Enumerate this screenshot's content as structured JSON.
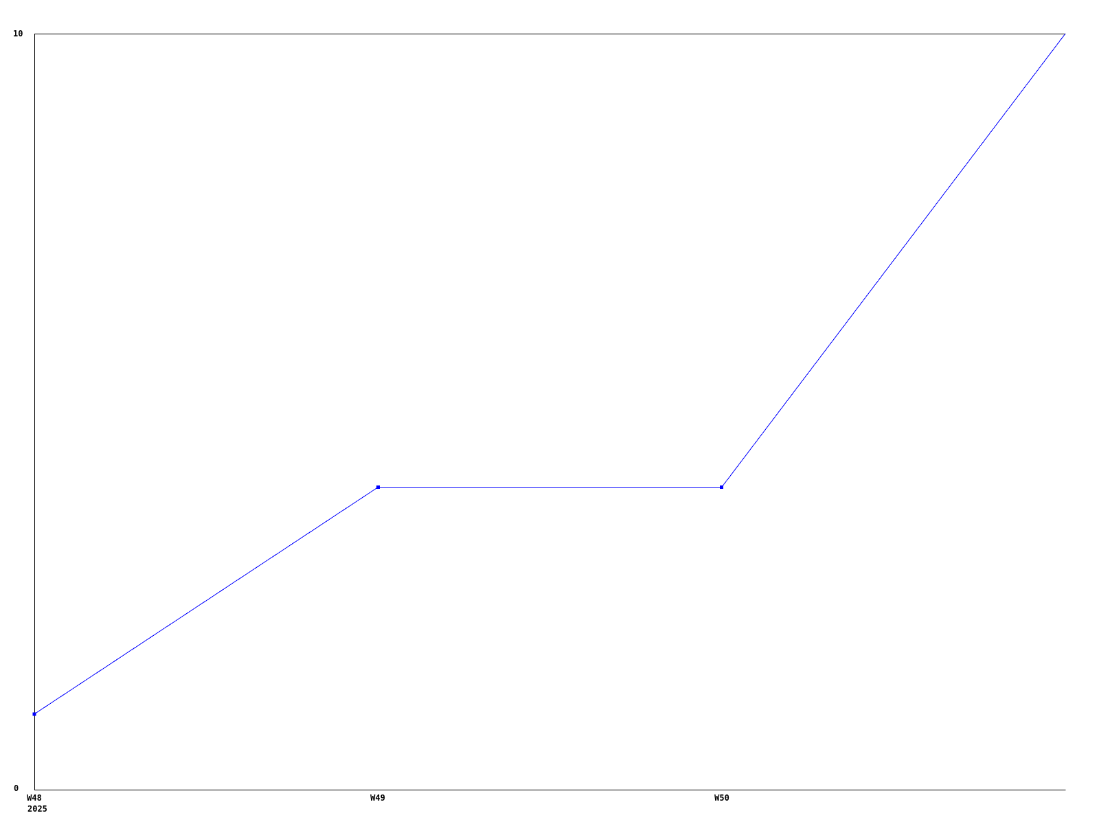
{
  "chart_data": {
    "type": "line",
    "title": "",
    "x": [
      0,
      1,
      2,
      3
    ],
    "values": [
      1,
      4,
      4,
      10
    ],
    "x_ticks": [
      {
        "index": 0,
        "label": "W48",
        "sublabel": "2025"
      },
      {
        "index": 1,
        "label": "W49"
      },
      {
        "index": 2,
        "label": "W50"
      }
    ],
    "y_tick_labels": [
      "0",
      "10"
    ],
    "ylim": [
      0,
      10
    ],
    "line_color": "#0000ff",
    "axis_color": "#000000",
    "background_color": "#ffffff",
    "grid": false,
    "legend": false,
    "marker": "square"
  }
}
